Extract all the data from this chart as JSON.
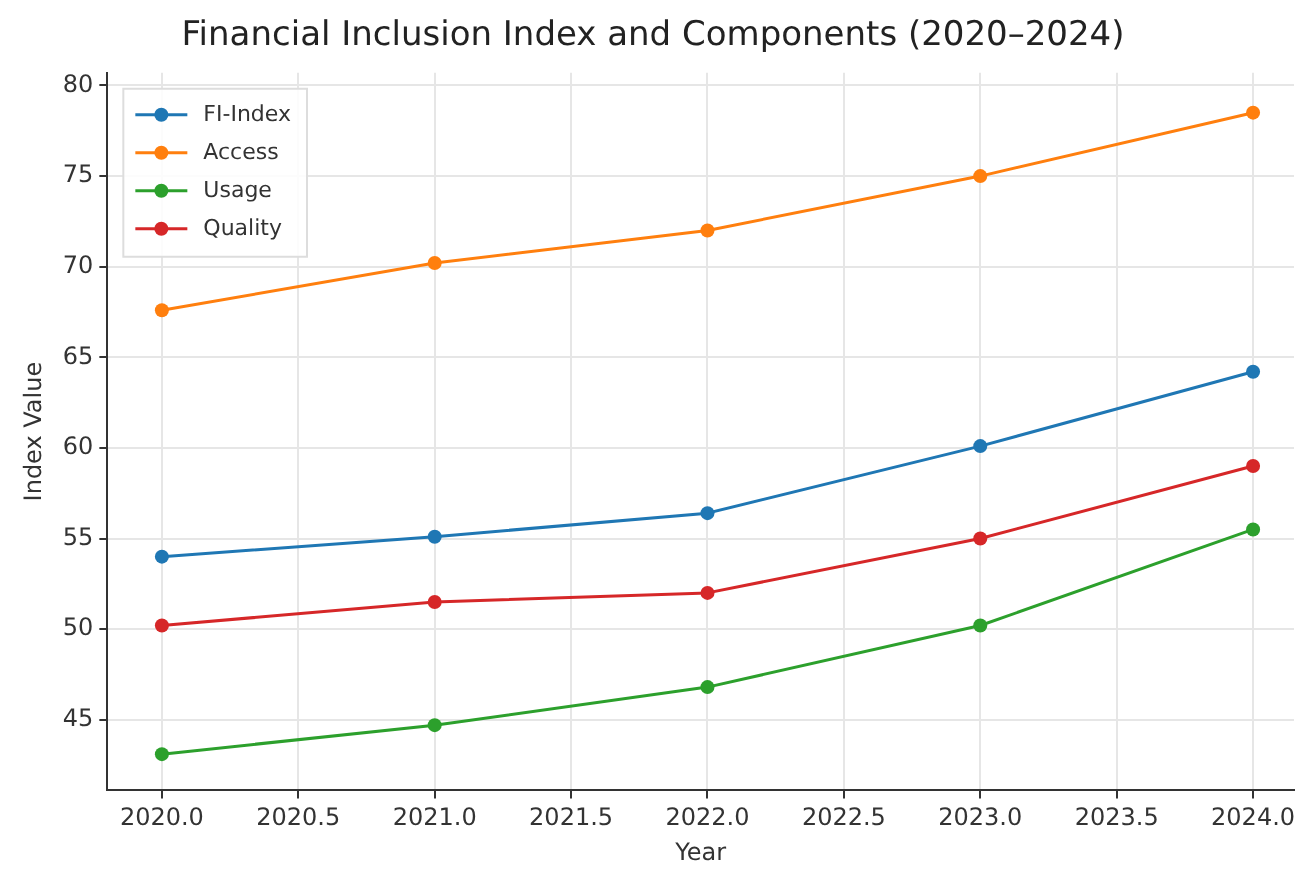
{
  "chart_data": {
    "type": "line",
    "title": "Financial Inclusion Index and Components (2020–2024)",
    "xlabel": "Year",
    "ylabel": "Index Value",
    "x": [
      2020,
      2021,
      2022,
      2023,
      2024
    ],
    "series": [
      {
        "name": "FI-Index",
        "color": "#1f77b4",
        "values": [
          54.0,
          55.1,
          56.4,
          60.1,
          64.2
        ]
      },
      {
        "name": "Access",
        "color": "#ff7f0e",
        "values": [
          67.6,
          70.2,
          72.0,
          75.0,
          78.5
        ]
      },
      {
        "name": "Usage",
        "color": "#2ca02c",
        "values": [
          43.1,
          44.7,
          46.8,
          50.2,
          55.5
        ]
      },
      {
        "name": "Quality",
        "color": "#d62728",
        "values": [
          50.2,
          51.5,
          52.0,
          55.0,
          59.0
        ]
      }
    ],
    "xlim": [
      2019.8,
      2024.15
    ],
    "xticks": [
      {
        "value": 2020,
        "label": "2020.0"
      },
      {
        "value": 2020.5,
        "label": "2020.5"
      },
      {
        "value": 2021,
        "label": "2021.0"
      },
      {
        "value": 2021.5,
        "label": "2021.5"
      },
      {
        "value": 2022,
        "label": "2022.0"
      },
      {
        "value": 2022.5,
        "label": "2022.5"
      },
      {
        "value": 2023,
        "label": "2023.0"
      },
      {
        "value": 2023.5,
        "label": "2023.5"
      },
      {
        "value": 2024,
        "label": "2024.0"
      }
    ],
    "ylim": [
      41.1,
      80.7
    ],
    "yticks": [
      45,
      50,
      55,
      60,
      65,
      70,
      75,
      80
    ],
    "grid": true,
    "legend": "top left",
    "marker": "circle",
    "line_style": "solid"
  }
}
